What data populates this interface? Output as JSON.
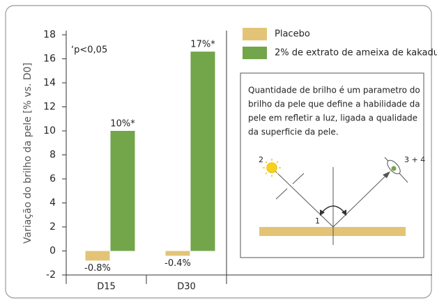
{
  "chart_data": {
    "type": "bar",
    "y_label": "Variação do brilho da pele [% vs. D0]",
    "annotation": "‘p<0,05",
    "categories": [
      "D15",
      "D30"
    ],
    "series": [
      {
        "name": "Placebo",
        "color": "#e3c477",
        "values": [
          -0.8,
          -0.4
        ],
        "value_labels": [
          "-0.8%",
          "-0.4%"
        ]
      },
      {
        "name": "2% de extrato de ameixa de kakadu",
        "color": "#73a54b",
        "values": [
          10,
          16.6
        ],
        "value_labels": [
          "10%*",
          "17%*"
        ]
      }
    ],
    "ylim": [
      -2,
      18
    ],
    "yticks": [
      -2,
      0,
      2,
      4,
      6,
      8,
      10,
      12,
      14,
      16,
      18
    ],
    "info_box": {
      "lines": [
        "Quantidade de brilho é um parametro do",
        "brilho da pele que define a habilidade da",
        "pele em refletir a luz, ligada a qualidade",
        "da superficie da pele."
      ],
      "labels": [
        "2",
        "1",
        "3 + 4"
      ]
    }
  }
}
